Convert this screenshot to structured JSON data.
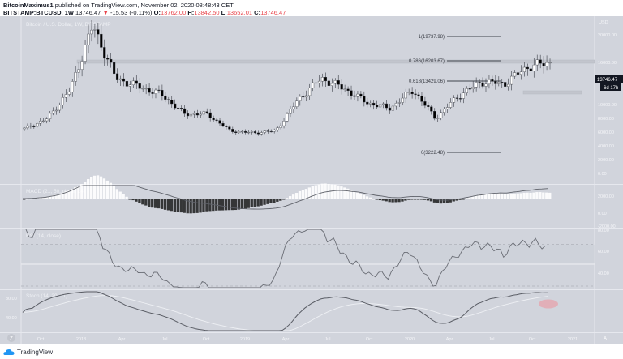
{
  "header": {
    "publisher": "BitcoinMaximus1",
    "published_text": "published on TradingView.com, November 02, 2020 08:48:43 CET",
    "symbol": "BITSTAMP:BTCUSD, 1W",
    "last": "13746.47",
    "change_arrow": "▼",
    "change": "-15.53 (-0.11%)",
    "o_label": "O:",
    "o": "13762.00",
    "h_label": "H:",
    "h": "13842.50",
    "l_label": "L:",
    "l": "13652.01",
    "c_label": "C:",
    "c": "13746.47"
  },
  "main_pane": {
    "legend": "Bitcoin / U.S. Dollar, 1W, BITSTAMP",
    "currency": "USD",
    "price_tag": "13746.47",
    "countdown_tag": "6d 17h"
  },
  "indicators": {
    "macd_legend": "MACD (21, 50, close, 24)",
    "rsi_legend": "RSI (14, close)",
    "stoch_legend": "Stoch (14, 20, 11)"
  },
  "footer": {
    "brand": "TradingView",
    "zoom_button": "Z",
    "auto_button": "A"
  },
  "colors": {
    "background": "#d1d4dc",
    "up_candle": "#ffffff",
    "down_candle": "#000000",
    "line": "#6b6e76",
    "highlight": "#e8a0a8"
  },
  "chart_data": [
    {
      "type": "candlestick",
      "title": "Bitcoin / U.S. Dollar, 1W, BITSTAMP",
      "ylabel": "USD",
      "ylim": [
        0,
        21000
      ],
      "yticks": [
        0,
        2000,
        4000,
        6000,
        8000,
        10000,
        12000,
        14000,
        16000,
        18000,
        20000
      ],
      "ytick_labels": [
        "0.00",
        "2000.00",
        "4000.00",
        "6000.00",
        "8000.00",
        "10000.00",
        "12000.00",
        "14000.00",
        "16000.00",
        "18000.00",
        "20000.00"
      ],
      "xtick_labels": [
        "Oct",
        "2018",
        "Apr",
        "Jul",
        "Oct",
        "2019",
        "Apr",
        "Jul",
        "Oct",
        "2020",
        "Apr",
        "Jul",
        "Oct",
        "2021"
      ],
      "fib_levels": [
        {
          "level": "1",
          "price": 19737.98,
          "label": "1(19737.98)"
        },
        {
          "level": "0.786",
          "price": 16203.67,
          "label": "0.786(16203.67)"
        },
        {
          "level": "0.618",
          "price": 13429.06,
          "label": "0.618(13429.06)"
        },
        {
          "level": "0",
          "price": 3222.48,
          "label": "0(3222.48)"
        }
      ],
      "horizontal_zones": [
        {
          "price": 16200,
          "note": "resistance band from Jan 2018"
        },
        {
          "price": 12000,
          "note": "resistance band mid-2020"
        }
      ],
      "last_price": 13746.47,
      "approx_closes": [
        {
          "x": "2017-09",
          "close": 4300
        },
        {
          "x": "2017-10",
          "close": 5700
        },
        {
          "x": "2017-11",
          "close": 9800
        },
        {
          "x": "2017-12",
          "close": 19000
        },
        {
          "x": "2018-01",
          "close": 11500
        },
        {
          "x": "2018-02",
          "close": 10300
        },
        {
          "x": "2018-04",
          "close": 9200
        },
        {
          "x": "2018-06",
          "close": 6400
        },
        {
          "x": "2018-08",
          "close": 6400
        },
        {
          "x": "2018-11",
          "close": 4000
        },
        {
          "x": "2018-12",
          "close": 3700
        },
        {
          "x": "2019-03",
          "close": 4000
        },
        {
          "x": "2019-05",
          "close": 8500
        },
        {
          "x": "2019-06",
          "close": 11500
        },
        {
          "x": "2019-08",
          "close": 10000
        },
        {
          "x": "2019-10",
          "close": 8000
        },
        {
          "x": "2019-12",
          "close": 7200
        },
        {
          "x": "2020-02",
          "close": 9800
        },
        {
          "x": "2020-03",
          "close": 5800
        },
        {
          "x": "2020-05",
          "close": 9000
        },
        {
          "x": "2020-07",
          "close": 11000
        },
        {
          "x": "2020-09",
          "close": 10700
        },
        {
          "x": "2020-10",
          "close": 13100
        },
        {
          "x": "2020-11",
          "close": 13746
        }
      ]
    },
    {
      "type": "line+histogram",
      "title": "MACD (21, 50, close, 24)",
      "yticks": [
        -2000,
        0,
        2000
      ],
      "ytick_labels": [
        "-2000.00",
        "0.00",
        "2000.00"
      ]
    },
    {
      "type": "line",
      "title": "RSI (14, close)",
      "yticks": [
        40,
        60,
        80
      ],
      "ytick_labels": [
        "40.00",
        "60.00",
        "80.00"
      ],
      "bands": [
        30,
        50,
        70
      ]
    },
    {
      "type": "line",
      "title": "Stoch (14, 20, 11)",
      "yticks": [
        40,
        80
      ],
      "ytick_labels": [
        "40.00",
        "80.00"
      ],
      "annotation": "highlighted ellipse at latest value"
    }
  ]
}
